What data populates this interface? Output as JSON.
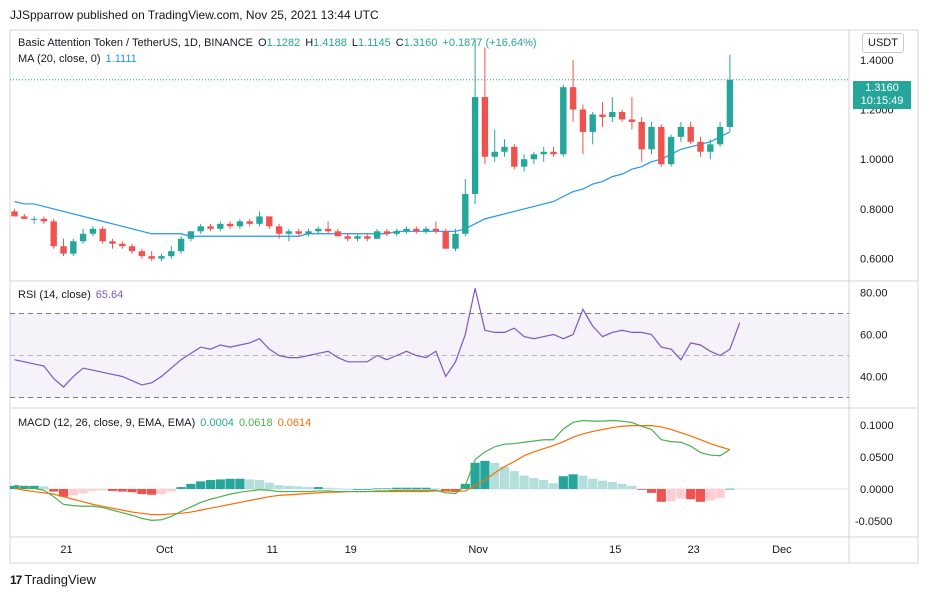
{
  "header": {
    "published_line": "JJSpparrow published on TradingView.com, Nov 25, 2021 13:44 UTC"
  },
  "main_legend": {
    "symbol": "Basic Attention Token / TetherUS, 1D, BINANCE",
    "o_label": "O",
    "o_value": "1.1282",
    "h_label": "H",
    "h_value": "1.4188",
    "l_label": "L",
    "l_value": "1.1145",
    "c_label": "C",
    "c_value": "1.3160",
    "change": "+0.1877 (+16.64%)"
  },
  "ma_legend": {
    "label": "MA (20, close, 0)",
    "value": "1.1111"
  },
  "rsi_legend": {
    "label": "RSI (14, close)",
    "value": "65.64"
  },
  "macd_legend": {
    "label": "MACD (12, 26, close, 9, EMA, EMA)",
    "hist": "0.0004",
    "macd": "0.0618",
    "signal": "0.0614"
  },
  "currency_button": "USDT",
  "current_price": {
    "price": "1.3160",
    "countdown": "10:15:49"
  },
  "footer": {
    "logo_mark": "17",
    "brand": "TradingView"
  },
  "colors": {
    "up": "#26a69a",
    "down": "#ef5350",
    "ma": "#2196f3",
    "rsi": "#7e57c2",
    "macd": "#4caf50",
    "signal": "#ff6d00",
    "hist_up_strong": "#26a69a",
    "hist_up_weak": "#b2dfdb",
    "hist_down_strong": "#ef5350",
    "hist_down_weak": "#ffcdd2"
  },
  "chart_data": {
    "type": "candlestick",
    "x_tick_labels": [
      "21",
      "Oct",
      "11",
      "19",
      "Nov",
      "15",
      "23",
      "Dec"
    ],
    "price_axis": {
      "ticks": [
        "1.4000",
        "1.2000",
        "1.0000",
        "0.8000",
        "0.6000"
      ],
      "ylim": [
        0.51,
        1.52
      ]
    },
    "rsi_axis": {
      "ticks": [
        "80.00",
        "60.00",
        "40.00"
      ],
      "ylim": [
        25,
        85
      ],
      "band": [
        30,
        70
      ],
      "mid": 50
    },
    "macd_axis": {
      "ticks": [
        "0.1000",
        "0.0500",
        "0.0000",
        "-0.0500"
      ],
      "ylim": [
        -0.075,
        0.125
      ]
    },
    "candles": [
      {
        "o": 0.79,
        "h": 0.8,
        "l": 0.77,
        "c": 0.77
      },
      {
        "o": 0.77,
        "h": 0.78,
        "l": 0.76,
        "c": 0.76
      },
      {
        "o": 0.76,
        "h": 0.77,
        "l": 0.74,
        "c": 0.76
      },
      {
        "o": 0.76,
        "h": 0.77,
        "l": 0.74,
        "c": 0.75
      },
      {
        "o": 0.75,
        "h": 0.76,
        "l": 0.64,
        "c": 0.65
      },
      {
        "o": 0.65,
        "h": 0.68,
        "l": 0.61,
        "c": 0.62
      },
      {
        "o": 0.62,
        "h": 0.68,
        "l": 0.61,
        "c": 0.67
      },
      {
        "o": 0.67,
        "h": 0.72,
        "l": 0.66,
        "c": 0.7
      },
      {
        "o": 0.7,
        "h": 0.73,
        "l": 0.69,
        "c": 0.72
      },
      {
        "o": 0.72,
        "h": 0.73,
        "l": 0.66,
        "c": 0.67
      },
      {
        "o": 0.67,
        "h": 0.68,
        "l": 0.64,
        "c": 0.66
      },
      {
        "o": 0.66,
        "h": 0.67,
        "l": 0.64,
        "c": 0.65
      },
      {
        "o": 0.65,
        "h": 0.66,
        "l": 0.62,
        "c": 0.63
      },
      {
        "o": 0.63,
        "h": 0.64,
        "l": 0.6,
        "c": 0.61
      },
      {
        "o": 0.61,
        "h": 0.63,
        "l": 0.59,
        "c": 0.6
      },
      {
        "o": 0.6,
        "h": 0.62,
        "l": 0.59,
        "c": 0.61
      },
      {
        "o": 0.61,
        "h": 0.65,
        "l": 0.6,
        "c": 0.63
      },
      {
        "o": 0.63,
        "h": 0.69,
        "l": 0.62,
        "c": 0.68
      },
      {
        "o": 0.68,
        "h": 0.71,
        "l": 0.67,
        "c": 0.71
      },
      {
        "o": 0.71,
        "h": 0.74,
        "l": 0.7,
        "c": 0.73
      },
      {
        "o": 0.73,
        "h": 0.74,
        "l": 0.71,
        "c": 0.72
      },
      {
        "o": 0.72,
        "h": 0.75,
        "l": 0.71,
        "c": 0.74
      },
      {
        "o": 0.74,
        "h": 0.75,
        "l": 0.72,
        "c": 0.73
      },
      {
        "o": 0.73,
        "h": 0.76,
        "l": 0.72,
        "c": 0.75
      },
      {
        "o": 0.75,
        "h": 0.76,
        "l": 0.73,
        "c": 0.74
      },
      {
        "o": 0.74,
        "h": 0.79,
        "l": 0.73,
        "c": 0.77
      },
      {
        "o": 0.77,
        "h": 0.77,
        "l": 0.72,
        "c": 0.73
      },
      {
        "o": 0.73,
        "h": 0.74,
        "l": 0.68,
        "c": 0.7
      },
      {
        "o": 0.7,
        "h": 0.72,
        "l": 0.67,
        "c": 0.71
      },
      {
        "o": 0.71,
        "h": 0.72,
        "l": 0.69,
        "c": 0.7
      },
      {
        "o": 0.7,
        "h": 0.72,
        "l": 0.69,
        "c": 0.71
      },
      {
        "o": 0.71,
        "h": 0.73,
        "l": 0.7,
        "c": 0.72
      },
      {
        "o": 0.72,
        "h": 0.75,
        "l": 0.7,
        "c": 0.71
      },
      {
        "o": 0.71,
        "h": 0.72,
        "l": 0.69,
        "c": 0.69
      },
      {
        "o": 0.69,
        "h": 0.7,
        "l": 0.67,
        "c": 0.68
      },
      {
        "o": 0.68,
        "h": 0.7,
        "l": 0.67,
        "c": 0.69
      },
      {
        "o": 0.69,
        "h": 0.7,
        "l": 0.67,
        "c": 0.68
      },
      {
        "o": 0.68,
        "h": 0.72,
        "l": 0.68,
        "c": 0.71
      },
      {
        "o": 0.71,
        "h": 0.72,
        "l": 0.69,
        "c": 0.7
      },
      {
        "o": 0.7,
        "h": 0.72,
        "l": 0.69,
        "c": 0.71
      },
      {
        "o": 0.71,
        "h": 0.73,
        "l": 0.7,
        "c": 0.72
      },
      {
        "o": 0.72,
        "h": 0.73,
        "l": 0.7,
        "c": 0.71
      },
      {
        "o": 0.71,
        "h": 0.73,
        "l": 0.7,
        "c": 0.72
      },
      {
        "o": 0.72,
        "h": 0.75,
        "l": 0.7,
        "c": 0.71
      },
      {
        "o": 0.71,
        "h": 0.72,
        "l": 0.64,
        "c": 0.64
      },
      {
        "o": 0.64,
        "h": 0.72,
        "l": 0.63,
        "c": 0.7
      },
      {
        "o": 0.7,
        "h": 0.92,
        "l": 0.69,
        "c": 0.86
      },
      {
        "o": 0.86,
        "h": 1.48,
        "l": 0.82,
        "c": 1.25
      },
      {
        "o": 1.25,
        "h": 1.45,
        "l": 0.98,
        "c": 1.01
      },
      {
        "o": 1.01,
        "h": 1.12,
        "l": 0.99,
        "c": 1.03
      },
      {
        "o": 1.03,
        "h": 1.08,
        "l": 1.01,
        "c": 1.05
      },
      {
        "o": 1.05,
        "h": 1.06,
        "l": 0.96,
        "c": 0.97
      },
      {
        "o": 0.97,
        "h": 1.02,
        "l": 0.95,
        "c": 1.0
      },
      {
        "o": 1.0,
        "h": 1.03,
        "l": 0.98,
        "c": 1.02
      },
      {
        "o": 1.02,
        "h": 1.05,
        "l": 0.99,
        "c": 1.03
      },
      {
        "o": 1.03,
        "h": 1.05,
        "l": 1.01,
        "c": 1.02
      },
      {
        "o": 1.02,
        "h": 1.3,
        "l": 1.01,
        "c": 1.29
      },
      {
        "o": 1.29,
        "h": 1.4,
        "l": 1.15,
        "c": 1.2
      },
      {
        "o": 1.2,
        "h": 1.22,
        "l": 1.02,
        "c": 1.11
      },
      {
        "o": 1.11,
        "h": 1.19,
        "l": 1.06,
        "c": 1.18
      },
      {
        "o": 1.18,
        "h": 1.23,
        "l": 1.13,
        "c": 1.17
      },
      {
        "o": 1.17,
        "h": 1.25,
        "l": 1.15,
        "c": 1.19
      },
      {
        "o": 1.19,
        "h": 1.2,
        "l": 1.15,
        "c": 1.16
      },
      {
        "o": 1.16,
        "h": 1.25,
        "l": 1.12,
        "c": 1.15
      },
      {
        "o": 1.15,
        "h": 1.17,
        "l": 0.99,
        "c": 1.04
      },
      {
        "o": 1.04,
        "h": 1.15,
        "l": 1.02,
        "c": 1.13
      },
      {
        "o": 1.13,
        "h": 1.14,
        "l": 0.97,
        "c": 0.98
      },
      {
        "o": 0.98,
        "h": 1.1,
        "l": 0.97,
        "c": 1.09
      },
      {
        "o": 1.09,
        "h": 1.15,
        "l": 1.07,
        "c": 1.13
      },
      {
        "o": 1.13,
        "h": 1.15,
        "l": 1.06,
        "c": 1.07
      },
      {
        "o": 1.07,
        "h": 1.09,
        "l": 1.01,
        "c": 1.03
      },
      {
        "o": 1.03,
        "h": 1.08,
        "l": 1.0,
        "c": 1.06
      },
      {
        "o": 1.06,
        "h": 1.15,
        "l": 1.05,
        "c": 1.13
      },
      {
        "o": 1.13,
        "h": 1.42,
        "l": 1.11,
        "c": 1.32
      }
    ],
    "ma": [
      0.83,
      0.82,
      0.82,
      0.81,
      0.8,
      0.79,
      0.78,
      0.77,
      0.76,
      0.75,
      0.74,
      0.73,
      0.72,
      0.71,
      0.7,
      0.7,
      0.7,
      0.7,
      0.69,
      0.69,
      0.69,
      0.69,
      0.69,
      0.69,
      0.69,
      0.69,
      0.69,
      0.69,
      0.69,
      0.69,
      0.7,
      0.7,
      0.7,
      0.7,
      0.7,
      0.7,
      0.7,
      0.7,
      0.7,
      0.71,
      0.71,
      0.71,
      0.71,
      0.71,
      0.71,
      0.71,
      0.72,
      0.74,
      0.76,
      0.77,
      0.78,
      0.79,
      0.8,
      0.81,
      0.82,
      0.83,
      0.85,
      0.87,
      0.88,
      0.9,
      0.91,
      0.93,
      0.94,
      0.96,
      0.97,
      0.99,
      1.0,
      1.02,
      1.04,
      1.05,
      1.06,
      1.07,
      1.09,
      1.11
    ],
    "rsi": [
      48,
      47,
      46,
      45,
      39,
      35,
      40,
      44,
      43,
      42,
      41,
      40,
      38,
      36,
      37,
      40,
      44,
      48,
      51,
      54,
      53,
      55,
      54,
      55,
      56,
      58,
      53,
      50,
      49,
      49,
      50,
      51,
      52,
      49,
      47,
      47,
      47,
      50,
      48,
      50,
      52,
      50,
      49,
      52,
      40,
      47,
      60,
      82,
      62,
      61,
      61,
      63,
      59,
      58,
      59,
      60,
      58,
      60,
      72,
      64,
      59,
      61,
      62,
      61,
      61,
      60,
      54,
      53,
      48,
      56,
      55,
      52,
      50,
      53,
      65.64
    ],
    "macd": [
      0.006,
      0.003,
      0.001,
      -0.002,
      -0.012,
      -0.024,
      -0.026,
      -0.027,
      -0.027,
      -0.029,
      -0.033,
      -0.037,
      -0.041,
      -0.046,
      -0.049,
      -0.048,
      -0.043,
      -0.035,
      -0.028,
      -0.021,
      -0.016,
      -0.012,
      -0.008,
      -0.005,
      -0.003,
      -0.001,
      -0.002,
      -0.004,
      -0.004,
      -0.004,
      -0.004,
      -0.003,
      -0.003,
      -0.004,
      -0.004,
      -0.004,
      -0.004,
      -0.003,
      -0.003,
      -0.002,
      -0.002,
      -0.002,
      -0.002,
      -0.002,
      -0.006,
      -0.007,
      0.005,
      0.046,
      0.058,
      0.066,
      0.07,
      0.071,
      0.073,
      0.075,
      0.077,
      0.077,
      0.094,
      0.104,
      0.107,
      0.106,
      0.106,
      0.107,
      0.106,
      0.104,
      0.098,
      0.093,
      0.077,
      0.074,
      0.073,
      0.067,
      0.057,
      0.053,
      0.052,
      0.0618
    ],
    "signal": [
      0.001,
      -0.002,
      -0.004,
      -0.006,
      -0.008,
      -0.012,
      -0.016,
      -0.02,
      -0.024,
      -0.027,
      -0.03,
      -0.033,
      -0.036,
      -0.038,
      -0.04,
      -0.04,
      -0.039,
      -0.038,
      -0.036,
      -0.033,
      -0.03,
      -0.027,
      -0.024,
      -0.021,
      -0.018,
      -0.015,
      -0.012,
      -0.01,
      -0.009,
      -0.008,
      -0.007,
      -0.006,
      -0.005,
      -0.005,
      -0.004,
      -0.004,
      -0.004,
      -0.004,
      -0.004,
      -0.004,
      -0.004,
      -0.004,
      -0.004,
      -0.003,
      -0.003,
      -0.004,
      -0.003,
      0.005,
      0.014,
      0.025,
      0.035,
      0.043,
      0.052,
      0.058,
      0.063,
      0.068,
      0.074,
      0.081,
      0.086,
      0.09,
      0.093,
      0.096,
      0.098,
      0.099,
      0.099,
      0.099,
      0.097,
      0.093,
      0.088,
      0.083,
      0.077,
      0.071,
      0.066,
      0.0614
    ],
    "hist": [
      0.005,
      0.005,
      0.005,
      0.004,
      -0.004,
      -0.012,
      -0.01,
      -0.007,
      -0.003,
      -0.002,
      -0.003,
      -0.004,
      -0.005,
      -0.008,
      -0.009,
      -0.008,
      -0.004,
      0.003,
      0.008,
      0.012,
      0.014,
      0.015,
      0.016,
      0.016,
      0.015,
      0.014,
      0.01,
      0.006,
      0.005,
      0.004,
      0.003,
      0.003,
      0.002,
      0.001,
      0.0,
      0.0,
      0.0,
      0.001,
      0.001,
      0.002,
      0.002,
      0.002,
      0.002,
      0.001,
      -0.003,
      -0.003,
      0.008,
      0.041,
      0.044,
      0.041,
      0.035,
      0.028,
      0.021,
      0.017,
      0.014,
      0.009,
      0.02,
      0.023,
      0.021,
      0.016,
      0.013,
      0.011,
      0.008,
      0.005,
      -0.001,
      -0.006,
      -0.02,
      -0.019,
      -0.015,
      -0.016,
      -0.02,
      -0.018,
      -0.014,
      0.0004
    ]
  }
}
